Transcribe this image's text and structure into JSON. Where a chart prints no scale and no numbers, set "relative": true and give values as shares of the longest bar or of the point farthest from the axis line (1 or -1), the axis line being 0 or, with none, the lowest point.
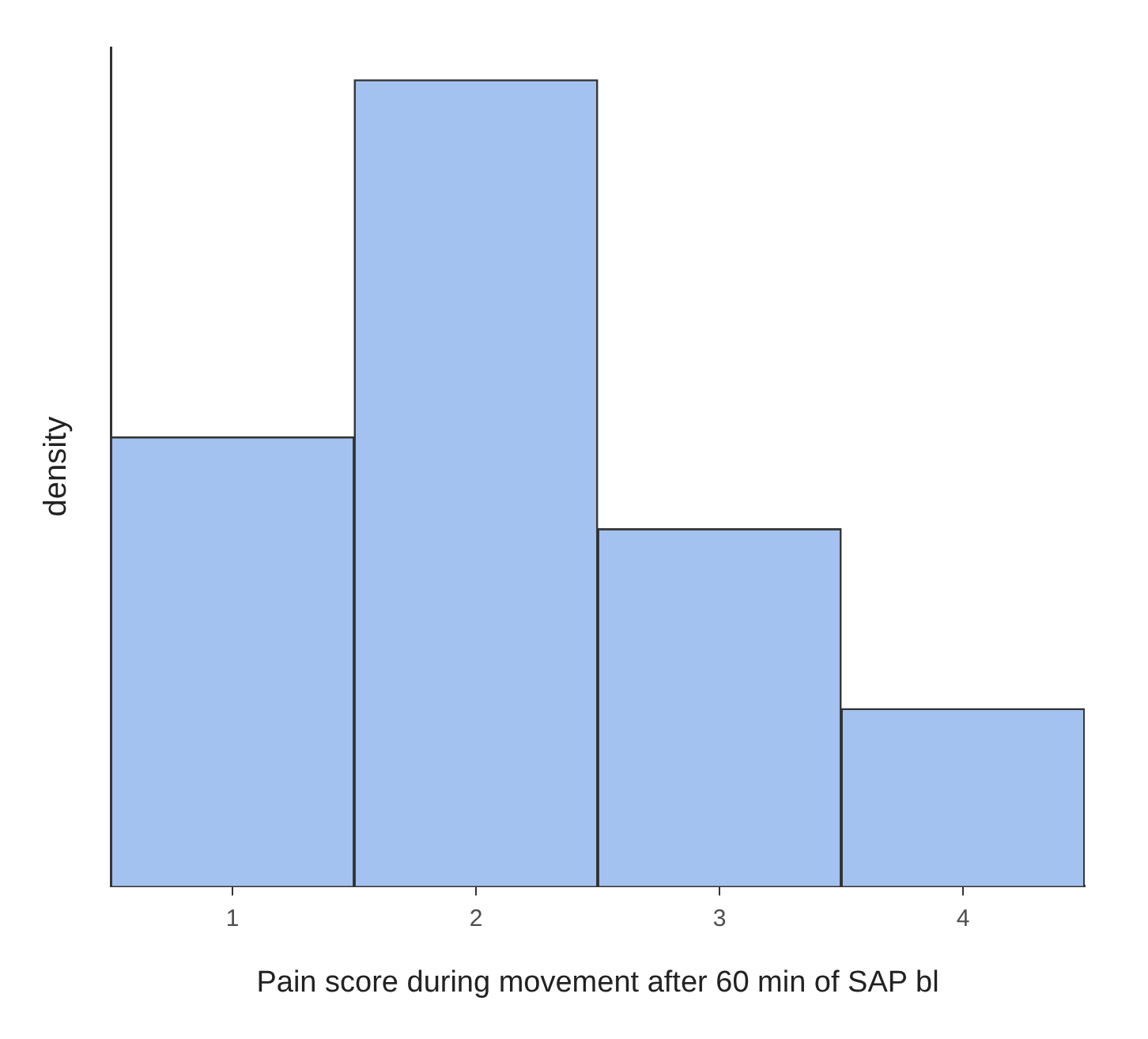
{
  "chart_data": {
    "type": "bar",
    "relative": true,
    "xlabel": "Pain score during movement after 60 min of SAP bl",
    "ylabel": "density",
    "categories": [
      "1",
      "2",
      "3",
      "4"
    ],
    "values": [
      0.557,
      1,
      0.443,
      0.22
    ],
    "color": "#a4c2f0",
    "grid": false,
    "legend": false
  }
}
